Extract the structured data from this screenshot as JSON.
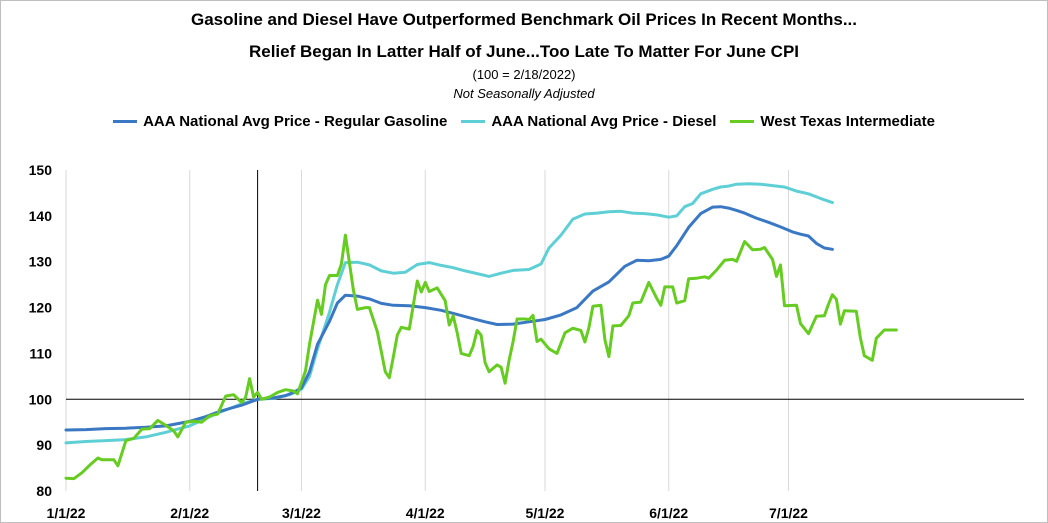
{
  "chart_data": {
    "type": "line",
    "title": "Gasoline and Diesel Have Outperformed Benchmark Oil Prices In Recent Months...",
    "subtitle": "Relief Began In Latter Half of June...Too Late To Matter For June CPI",
    "note1": "(100 = 2/18/2022)",
    "note2": "Not Seasonally Adjusted",
    "ylim": [
      80,
      150
    ],
    "yticks": [
      80,
      90,
      100,
      110,
      120,
      130,
      140,
      150
    ],
    "xlim": [
      0,
      240
    ],
    "xticks": [
      {
        "label": "1/1/22",
        "day": 0
      },
      {
        "label": "2/1/22",
        "day": 31
      },
      {
        "label": "3/1/22",
        "day": 59
      },
      {
        "label": "4/1/22",
        "day": 90
      },
      {
        "label": "5/1/22",
        "day": 120
      },
      {
        "label": "6/1/22",
        "day": 151
      },
      {
        "label": "7/1/22",
        "day": 181
      }
    ],
    "reference_line_y": 100,
    "reference_vline_day": 48,
    "legend_position": "top",
    "series": [
      {
        "name": "AAA National Avg Price - Regular Gasoline",
        "color": "#3a78c3",
        "points": [
          [
            0,
            93.3
          ],
          [
            5,
            93.4
          ],
          [
            10,
            93.6
          ],
          [
            15,
            93.7
          ],
          [
            20,
            93.9
          ],
          [
            25,
            94.2
          ],
          [
            28,
            94.7
          ],
          [
            31,
            95.2
          ],
          [
            35,
            96.2
          ],
          [
            38,
            97.2
          ],
          [
            41,
            98.0
          ],
          [
            44,
            98.7
          ],
          [
            48,
            100
          ],
          [
            52,
            100.3
          ],
          [
            55,
            100.8
          ],
          [
            57,
            101.5
          ],
          [
            59,
            102.5
          ],
          [
            61,
            106
          ],
          [
            63,
            112
          ],
          [
            66,
            117
          ],
          [
            68,
            121
          ],
          [
            70,
            122.7
          ],
          [
            73,
            122.5
          ],
          [
            76,
            121.9
          ],
          [
            79,
            120.9
          ],
          [
            82,
            120.5
          ],
          [
            86,
            120.4
          ],
          [
            90,
            120.0
          ],
          [
            94,
            119.4
          ],
          [
            98,
            118.5
          ],
          [
            101,
            117.8
          ],
          [
            105,
            116.9
          ],
          [
            108,
            116.3
          ],
          [
            112,
            116.4
          ],
          [
            116,
            116.9
          ],
          [
            120,
            117.4
          ],
          [
            124,
            118.4
          ],
          [
            128,
            120.0
          ],
          [
            132,
            123.6
          ],
          [
            136,
            125.6
          ],
          [
            140,
            129.0
          ],
          [
            143,
            130.3
          ],
          [
            146,
            130.2
          ],
          [
            149,
            130.5
          ],
          [
            151,
            131.2
          ],
          [
            153,
            133.5
          ],
          [
            156,
            137.5
          ],
          [
            159,
            140.5
          ],
          [
            162,
            141.9
          ],
          [
            164,
            142.0
          ],
          [
            166,
            141.7
          ],
          [
            168,
            141.2
          ],
          [
            170,
            140.6
          ],
          [
            173,
            139.5
          ],
          [
            176,
            138.6
          ],
          [
            179,
            137.6
          ],
          [
            182,
            136.5
          ],
          [
            184,
            136.0
          ],
          [
            186,
            135.6
          ],
          [
            188,
            134.0
          ],
          [
            190,
            133.0
          ],
          [
            192,
            132.7
          ]
        ]
      },
      {
        "name": "AAA National Avg Price - Diesel",
        "color": "#5fcfd6",
        "points": [
          [
            0,
            90.5
          ],
          [
            5,
            90.8
          ],
          [
            10,
            91.0
          ],
          [
            15,
            91.2
          ],
          [
            20,
            91.8
          ],
          [
            25,
            92.8
          ],
          [
            28,
            93.5
          ],
          [
            31,
            94.2
          ],
          [
            35,
            95.8
          ],
          [
            38,
            97.0
          ],
          [
            41,
            98.0
          ],
          [
            44,
            99.0
          ],
          [
            48,
            100
          ],
          [
            52,
            100.2
          ],
          [
            56,
            101.0
          ],
          [
            59,
            102.2
          ],
          [
            61,
            105
          ],
          [
            63,
            111
          ],
          [
            66,
            119
          ],
          [
            68,
            125
          ],
          [
            70,
            129.8
          ],
          [
            73,
            129.9
          ],
          [
            76,
            129.3
          ],
          [
            79,
            128.0
          ],
          [
            82,
            127.5
          ],
          [
            85,
            127.7
          ],
          [
            88,
            129.4
          ],
          [
            91,
            129.8
          ],
          [
            94,
            129.2
          ],
          [
            97,
            128.7
          ],
          [
            100,
            128.0
          ],
          [
            103,
            127.4
          ],
          [
            106,
            126.8
          ],
          [
            109,
            127.5
          ],
          [
            112,
            128.1
          ],
          [
            116,
            128.3
          ],
          [
            119,
            129.5
          ],
          [
            121,
            133.0
          ],
          [
            124,
            135.8
          ],
          [
            127,
            139.3
          ],
          [
            130,
            140.4
          ],
          [
            133,
            140.6
          ],
          [
            136,
            140.9
          ],
          [
            139,
            141.0
          ],
          [
            142,
            140.6
          ],
          [
            145,
            140.5
          ],
          [
            148,
            140.2
          ],
          [
            151,
            139.7
          ],
          [
            153,
            140.0
          ],
          [
            155,
            142.0
          ],
          [
            157,
            142.7
          ],
          [
            159,
            144.8
          ],
          [
            162,
            145.8
          ],
          [
            164,
            146.3
          ],
          [
            166,
            146.5
          ],
          [
            168,
            146.9
          ],
          [
            171,
            147.0
          ],
          [
            174,
            146.9
          ],
          [
            177,
            146.6
          ],
          [
            180,
            146.3
          ],
          [
            183,
            145.4
          ],
          [
            186,
            144.8
          ],
          [
            189,
            143.8
          ],
          [
            192,
            142.9
          ]
        ]
      },
      {
        "name": "West Texas Intermediate",
        "color": "#66cc22",
        "points": [
          [
            0,
            82.8
          ],
          [
            2,
            82.7
          ],
          [
            4,
            84.0
          ],
          [
            6,
            85.7
          ],
          [
            8,
            87.2
          ],
          [
            9,
            86.8
          ],
          [
            12,
            86.8
          ],
          [
            13,
            85.5
          ],
          [
            15,
            91.0
          ],
          [
            17,
            91.5
          ],
          [
            19,
            93.5
          ],
          [
            21,
            93.6
          ],
          [
            23,
            95.4
          ],
          [
            25,
            94.3
          ],
          [
            27,
            93.1
          ],
          [
            28,
            91.8
          ],
          [
            30,
            95.0
          ],
          [
            32,
            95.2
          ],
          [
            34,
            95.0
          ],
          [
            36,
            96.4
          ],
          [
            38,
            96.8
          ],
          [
            40,
            100.7
          ],
          [
            42,
            101.0
          ],
          [
            44,
            99.3
          ],
          [
            45,
            100.4
          ],
          [
            46,
            104.5
          ],
          [
            47,
            100.5
          ],
          [
            48,
            101.5
          ],
          [
            49,
            100
          ],
          [
            51,
            100.5
          ],
          [
            53,
            101.5
          ],
          [
            55,
            102.1
          ],
          [
            57,
            101.8
          ],
          [
            58,
            101.2
          ],
          [
            60,
            106.2
          ],
          [
            61,
            112
          ],
          [
            63,
            121.6
          ],
          [
            64,
            118.5
          ],
          [
            65,
            125
          ],
          [
            66,
            127
          ],
          [
            68,
            127
          ],
          [
            69,
            129.5
          ],
          [
            70,
            135.8
          ],
          [
            72,
            123.8
          ],
          [
            73,
            119.6
          ],
          [
            75,
            120.0
          ],
          [
            76,
            120
          ],
          [
            78,
            114.7
          ],
          [
            80,
            106
          ],
          [
            81,
            104.7
          ],
          [
            82,
            109.2
          ],
          [
            83,
            114
          ],
          [
            84,
            115.7
          ],
          [
            86,
            115.3
          ],
          [
            88,
            125.8
          ],
          [
            89,
            123.4
          ],
          [
            90,
            125.5
          ],
          [
            91,
            123.5
          ],
          [
            93,
            124.3
          ],
          [
            95,
            121.5
          ],
          [
            96,
            116.2
          ],
          [
            97,
            118.2
          ],
          [
            98,
            114.5
          ],
          [
            99,
            110
          ],
          [
            101,
            109.5
          ],
          [
            102,
            111.5
          ],
          [
            103,
            115
          ],
          [
            104,
            114
          ],
          [
            105,
            108
          ],
          [
            106,
            106.0
          ],
          [
            108,
            107.5
          ],
          [
            109,
            107
          ],
          [
            110,
            103.5
          ],
          [
            111,
            108.5
          ],
          [
            112,
            112.6
          ],
          [
            113,
            117.5
          ],
          [
            115,
            117.5
          ],
          [
            116,
            117.4
          ],
          [
            117,
            118.3
          ],
          [
            118,
            112.6
          ],
          [
            119,
            113.1
          ],
          [
            121,
            111
          ],
          [
            123,
            110.0
          ],
          [
            125,
            114.5
          ],
          [
            127,
            115.5
          ],
          [
            129,
            115.0
          ],
          [
            130,
            112.5
          ],
          [
            131,
            115.6
          ],
          [
            132,
            120.3
          ],
          [
            134,
            120.5
          ],
          [
            135,
            113
          ],
          [
            136,
            109.3
          ],
          [
            137,
            116
          ],
          [
            139,
            116.1
          ],
          [
            141,
            118.2
          ],
          [
            142,
            121
          ],
          [
            144,
            121.2
          ],
          [
            146,
            125.5
          ],
          [
            148,
            122.0
          ],
          [
            149,
            120.5
          ],
          [
            150,
            124.5
          ],
          [
            152,
            124.5
          ],
          [
            153,
            121
          ],
          [
            155,
            121.5
          ],
          [
            156,
            126.3
          ],
          [
            158,
            126.4
          ],
          [
            160,
            126.7
          ],
          [
            161,
            126.4
          ],
          [
            163,
            128.2
          ],
          [
            165,
            130.3
          ],
          [
            167,
            130.5
          ],
          [
            168,
            130.1
          ],
          [
            170,
            134.4
          ],
          [
            172,
            132.6
          ],
          [
            174,
            132.7
          ],
          [
            175,
            133.1
          ],
          [
            177,
            130.5
          ],
          [
            178,
            126.8
          ],
          [
            179,
            129.3
          ],
          [
            180,
            120.4
          ],
          [
            183,
            120.5
          ],
          [
            184,
            116.5
          ],
          [
            186,
            114.3
          ],
          [
            188,
            118.1
          ],
          [
            190,
            118.2
          ],
          [
            191,
            120.7
          ],
          [
            192,
            122.8
          ],
          [
            193,
            121.8
          ],
          [
            194,
            116.4
          ],
          [
            195,
            119.3
          ],
          [
            198,
            119.2
          ],
          [
            199,
            113.5
          ],
          [
            200,
            109.5
          ],
          [
            202,
            108.5
          ],
          [
            203,
            113.3
          ],
          [
            205,
            115.1
          ],
          [
            208,
            115.1
          ]
        ]
      }
    ]
  }
}
